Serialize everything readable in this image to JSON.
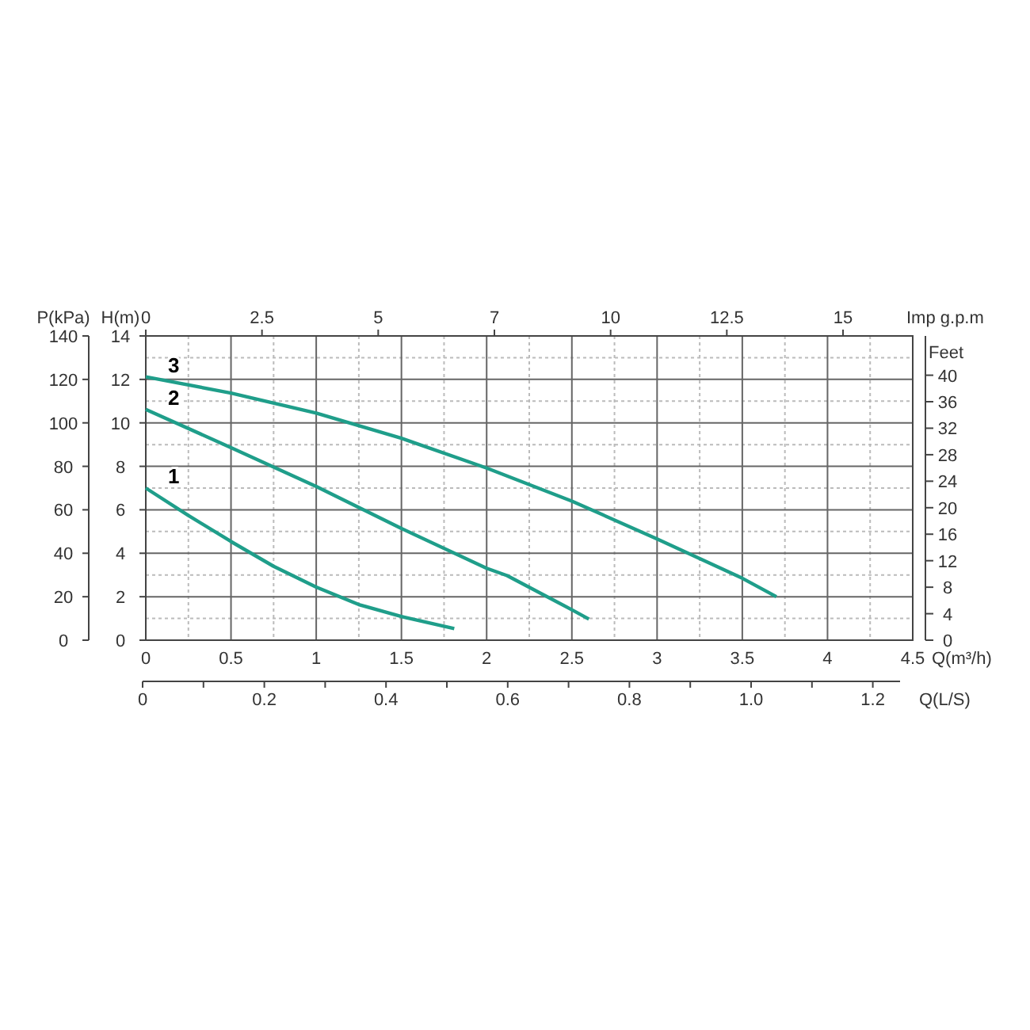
{
  "chart_data": [
    {
      "type": "line",
      "xlabel": "Q(m³/h)",
      "ylabel": "H(m)",
      "y2label": "Feet",
      "y3label": "P(kPa)",
      "x2label": "Imp  g.p.m",
      "xlim": [
        0,
        4.5
      ],
      "xticks": [
        0,
        0.5,
        1,
        1.5,
        2,
        2.5,
        3,
        3.5,
        4,
        4.5
      ],
      "ylim": [
        0,
        14
      ],
      "yticks": [
        0,
        2,
        4,
        6,
        8,
        10,
        12,
        14
      ],
      "y2lim": [
        0,
        45.93
      ],
      "y2ticks": [
        0,
        4,
        8,
        12,
        16,
        20,
        24,
        28,
        32,
        36,
        40
      ],
      "y3lim": [
        0,
        140
      ],
      "y3ticks": [
        0,
        20,
        40,
        60,
        80,
        100,
        120,
        140
      ],
      "x2lim": [
        0,
        16.5
      ],
      "x2ticks": [
        0,
        2.5,
        5,
        {
          "value": 7.5,
          "label": "7"
        },
        10,
        12.5,
        15
      ],
      "grid": true,
      "line_style": "solid",
      "marker": "none",
      "annotations": [
        "0",
        "0.2",
        "0.4",
        "0.6",
        "0.8",
        "1.0",
        "1.2",
        "Q(L/S)"
      ],
      "series": [
        {
          "name": "1",
          "color": "#1f9e8a",
          "x": [
            0,
            0.25,
            0.5,
            0.75,
            1,
            1.25,
            1.5,
            1.81
          ],
          "values": [
            7.0,
            5.74,
            4.54,
            3.4,
            2.44,
            1.64,
            1.09,
            0.53
          ]
        },
        {
          "name": "2",
          "color": "#1f9e8a",
          "x": [
            0,
            0.5,
            1,
            1.5,
            2,
            2.12,
            2.5,
            2.6
          ],
          "values": [
            10.62,
            8.86,
            7.07,
            5.14,
            3.31,
            2.97,
            1.4,
            0.97
          ]
        },
        {
          "name": "3",
          "color": "#1f9e8a",
          "x": [
            0,
            0.5,
            1,
            1.5,
            2,
            2.5,
            3,
            3.5,
            3.7
          ],
          "values": [
            12.12,
            11.37,
            10.45,
            9.29,
            7.92,
            6.4,
            4.66,
            2.85,
            2.0
          ]
        }
      ]
    }
  ]
}
